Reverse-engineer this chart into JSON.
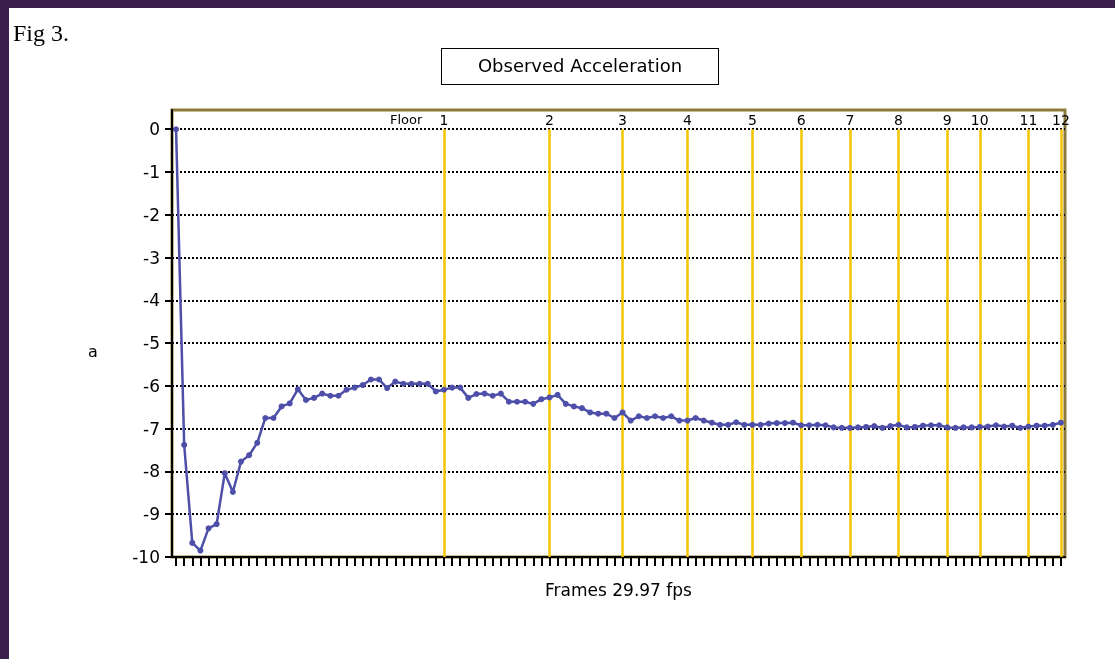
{
  "chart_data": {
    "type": "line",
    "title": "Observed Acceleration",
    "xlabel": "Frames 29.97 fps",
    "ylabel": "a",
    "annotations": [
      "Fig 3.",
      "Floor"
    ],
    "categories": [
      null,
      null,
      null,
      null,
      null,
      null,
      null,
      null,
      null,
      null,
      null,
      null,
      null,
      null,
      null,
      null,
      null,
      null,
      null,
      null,
      null,
      null,
      null,
      null,
      null,
      null,
      null,
      null,
      null,
      null,
      null,
      null,
      null,
      "1",
      null,
      null,
      null,
      null,
      null,
      null,
      null,
      null,
      null,
      null,
      null,
      null,
      "2",
      null,
      null,
      null,
      null,
      null,
      null,
      null,
      null,
      "3",
      null,
      null,
      null,
      null,
      null,
      null,
      null,
      "4",
      null,
      null,
      null,
      null,
      null,
      null,
      null,
      "5",
      null,
      null,
      null,
      null,
      null,
      "6",
      null,
      null,
      null,
      null,
      null,
      "7",
      null,
      null,
      null,
      null,
      null,
      "8",
      null,
      null,
      null,
      null,
      null,
      "9",
      null,
      null,
      null,
      "10",
      null,
      null,
      null,
      null,
      null,
      "11",
      null,
      null,
      null,
      "12"
    ],
    "series": [
      {
        "color": "#4d4fa8",
        "values": [
          0,
          -7.38,
          -9.67,
          -9.85,
          -9.33,
          -9.23,
          -8.04,
          -8.48,
          -7.77,
          -7.62,
          -7.33,
          -6.75,
          -6.75,
          -6.48,
          -6.41,
          -6.08,
          -6.33,
          -6.28,
          -6.18,
          -6.23,
          -6.23,
          -6.09,
          -6.04,
          -5.98,
          -5.85,
          -5.85,
          -6.05,
          -5.9,
          -5.95,
          -5.95,
          -5.95,
          -5.95,
          -6.13,
          -6.09,
          -6.04,
          -6.04,
          -6.28,
          -6.19,
          -6.18,
          -6.23,
          -6.18,
          -6.37,
          -6.37,
          -6.37,
          -6.42,
          -6.31,
          -6.27,
          -6.21,
          -6.42,
          -6.48,
          -6.52,
          -6.62,
          -6.65,
          -6.65,
          -6.75,
          -6.62,
          -6.81,
          -6.71,
          -6.75,
          -6.71,
          -6.75,
          -6.71,
          -6.81,
          -6.81,
          -6.75,
          -6.81,
          -6.86,
          -6.91,
          -6.91,
          -6.85,
          -6.91,
          -6.91,
          -6.91,
          -6.88,
          -6.87,
          -6.87,
          -6.86,
          -6.92,
          -6.92,
          -6.91,
          -6.92,
          -6.97,
          -6.98,
          -6.98,
          -6.97,
          -6.96,
          -6.94,
          -6.98,
          -6.94,
          -6.91,
          -6.97,
          -6.96,
          -6.93,
          -6.92,
          -6.92,
          -6.97,
          -6.98,
          -6.97,
          -6.97,
          -6.96,
          -6.95,
          -6.92,
          -6.95,
          -6.93,
          -6.98,
          -6.95,
          -6.93,
          -6.93,
          -6.91,
          -6.86
        ]
      }
    ],
    "ylim": [
      -10,
      0.45
    ],
    "yticks": [
      0,
      -1,
      -2,
      -3,
      -4,
      -5,
      -6,
      -7,
      -8,
      -9,
      -10
    ],
    "grid": "y",
    "marker": "circle",
    "line_style": "solid",
    "ref_lines": [
      {
        "axis": "x",
        "value": "1",
        "color": "#f5c400"
      },
      {
        "axis": "x",
        "value": "2",
        "color": "#f5c400"
      },
      {
        "axis": "x",
        "value": "3",
        "color": "#f5c400"
      },
      {
        "axis": "x",
        "value": "4",
        "color": "#f5c400"
      },
      {
        "axis": "x",
        "value": "5",
        "color": "#f5c400"
      },
      {
        "axis": "x",
        "value": "6",
        "color": "#f5c400"
      },
      {
        "axis": "x",
        "value": "7",
        "color": "#f5c400"
      },
      {
        "axis": "x",
        "value": "8",
        "color": "#f5c400"
      },
      {
        "axis": "x",
        "value": "9",
        "color": "#f5c400"
      },
      {
        "axis": "x",
        "value": "10",
        "color": "#f5c400"
      },
      {
        "axis": "x",
        "value": "11",
        "color": "#f5c400"
      },
      {
        "axis": "x",
        "value": "12",
        "color": "#f5c400"
      }
    ]
  }
}
